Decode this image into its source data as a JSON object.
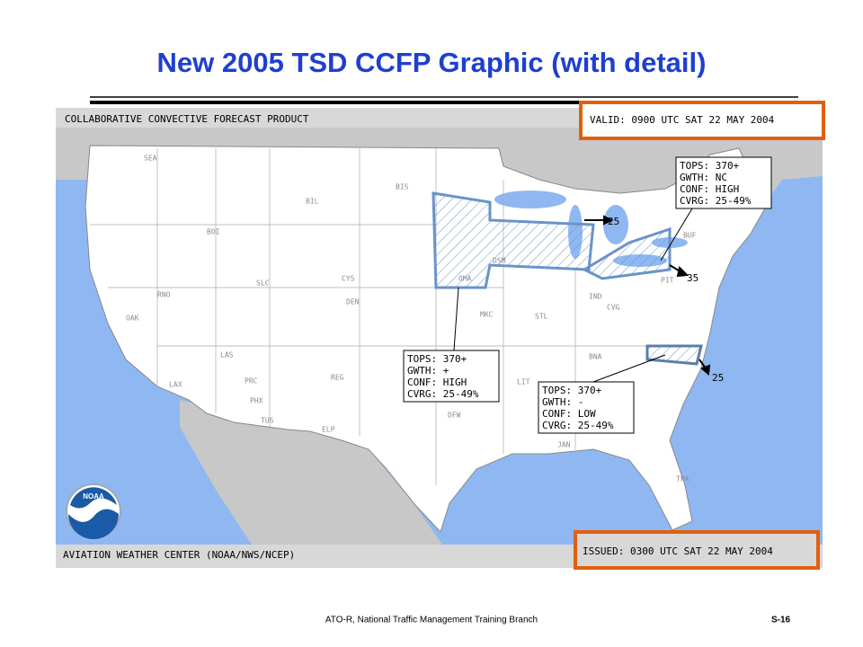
{
  "title": "New 2005 TSD CCFP Graphic (with detail)",
  "map": {
    "header": "COLLABORATIVE CONVECTIVE FORECAST PRODUCT",
    "valid": "VALID: 0900 UTC SAT 22 MAY 2004",
    "issued": "ISSUED: 0300 UTC SAT 22 MAY 2004",
    "credit": "AVIATION WEATHER CENTER (NOAA/NWS/NCEP)",
    "logo": "NOAA",
    "stations": [
      "SEA",
      "BIL",
      "BIS",
      "BOI",
      "RNO",
      "SLC",
      "CYS",
      "DEN",
      "OAK",
      "LAS",
      "LAX",
      "PRC",
      "PHX",
      "TUS",
      "REG",
      "ELP",
      "DFW",
      "MKC",
      "STL",
      "DSM",
      "OMA",
      "IND",
      "CVG",
      "BNA",
      "LIT",
      "JAN",
      "TPA",
      "PIT",
      "BUF"
    ],
    "forecasts": [
      {
        "lines": [
          "TOPS: 370+",
          "GWTH: NC",
          "CONF: HIGH",
          "CVRG: 25-49%"
        ]
      },
      {
        "lines": [
          "TOPS: 370+",
          "GWTH: +",
          "CONF: HIGH",
          "CVRG: 25-49%"
        ]
      },
      {
        "lines": [
          "TOPS: 370+",
          "GWTH: -",
          "CONF: LOW",
          "CVRG: 25-49%"
        ]
      }
    ],
    "movement": [
      25,
      35,
      25
    ]
  },
  "footer": {
    "text": "ATO-R, National Traffic Management Training Branch",
    "page": "S-16"
  }
}
